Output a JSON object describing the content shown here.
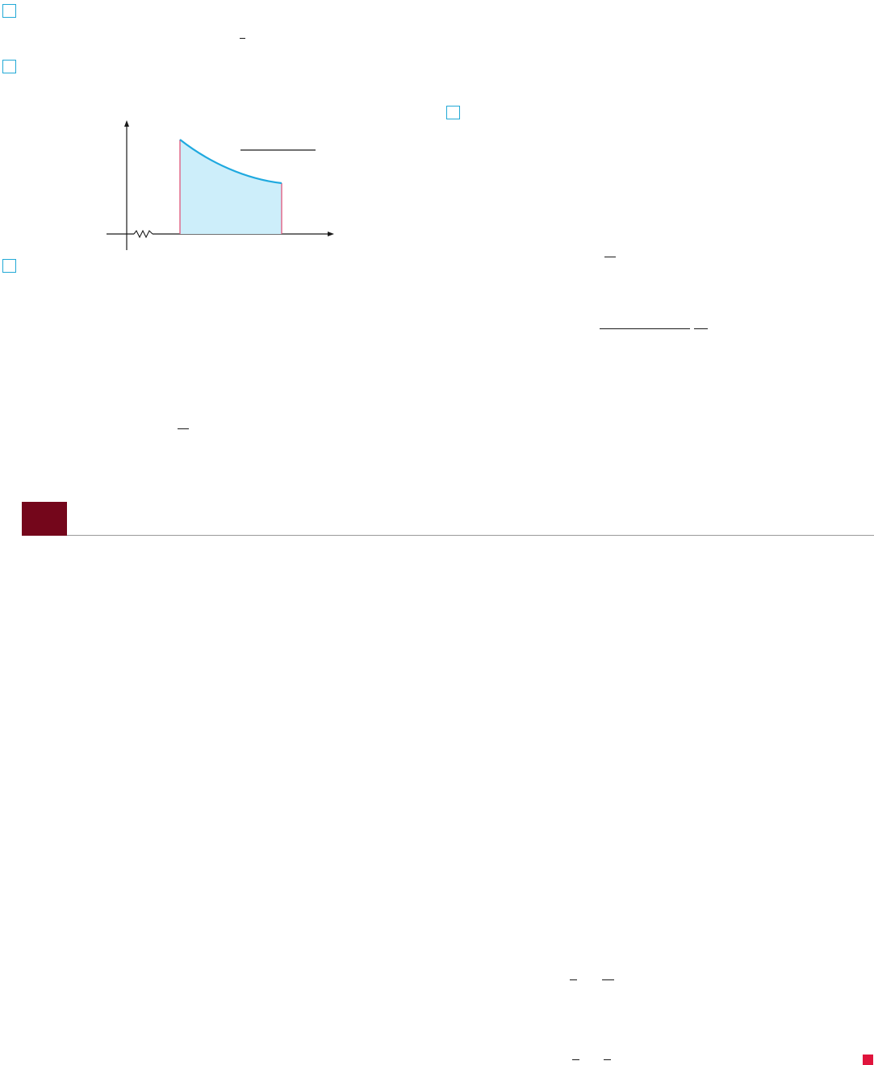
{
  "colors": {
    "accent_box": "#22a9d6",
    "section_block": "#74061b",
    "end_marker": "#e0143c",
    "curve": "#1fa9df",
    "shaded_region": "#cdeefa",
    "boundary_lines": "#e0547a",
    "rule": "#9a9a9a"
  },
  "figure": {
    "type": "shaded-area-under-decreasing-curve",
    "axes": "x-y",
    "axis_break": "zigzag"
  },
  "icons": {
    "exercise_marker": "square-outline-icon",
    "section_marker": "filled-rectangle-icon",
    "end_of_section": "filled-square-icon"
  }
}
